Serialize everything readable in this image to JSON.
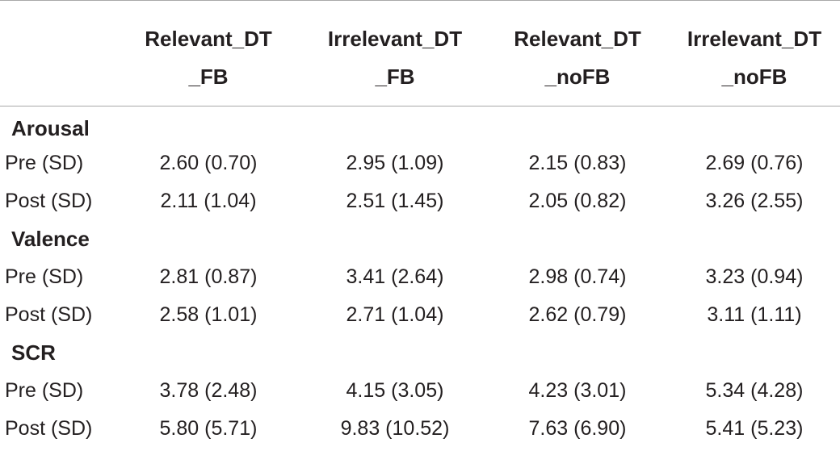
{
  "table": {
    "headers": [
      {
        "line1": "",
        "line2": ""
      },
      {
        "line1": "Relevant_DT",
        "line2": "_FB"
      },
      {
        "line1": "Irrelevant_DT",
        "line2": "_FB"
      },
      {
        "line1": "Relevant_DT",
        "line2": "_noFB"
      },
      {
        "line1": "Irrelevant_DT",
        "line2": "_noFB"
      }
    ],
    "sections": [
      {
        "name": "Arousal",
        "rows": [
          {
            "label": "Pre (SD)",
            "values": [
              "2.60 (0.70)",
              "2.95 (1.09)",
              "2.15 (0.83)",
              "2.69 (0.76)"
            ]
          },
          {
            "label": "Post (SD)",
            "values": [
              "2.11 (1.04)",
              "2.51 (1.45)",
              "2.05 (0.82)",
              "3.26 (2.55)"
            ]
          }
        ]
      },
      {
        "name": "Valence",
        "rows": [
          {
            "label": "Pre (SD)",
            "values": [
              "2.81 (0.87)",
              "3.41 (2.64)",
              "2.98 (0.74)",
              "3.23 (0.94)"
            ]
          },
          {
            "label": "Post (SD)",
            "values": [
              "2.58 (1.01)",
              "2.71 (1.04)",
              "2.62 (0.79)",
              "3.11 (1.11)"
            ]
          }
        ]
      },
      {
        "name": "SCR",
        "rows": [
          {
            "label": "Pre (SD)",
            "values": [
              "3.78 (2.48)",
              "4.15 (3.05)",
              "4.23 (3.01)",
              "5.34 (4.28)"
            ]
          },
          {
            "label": "Post (SD)",
            "values": [
              "5.80 (5.71)",
              "9.83 (10.52)",
              "7.63 (6.90)",
              "5.41 (5.23)"
            ]
          }
        ]
      }
    ]
  }
}
